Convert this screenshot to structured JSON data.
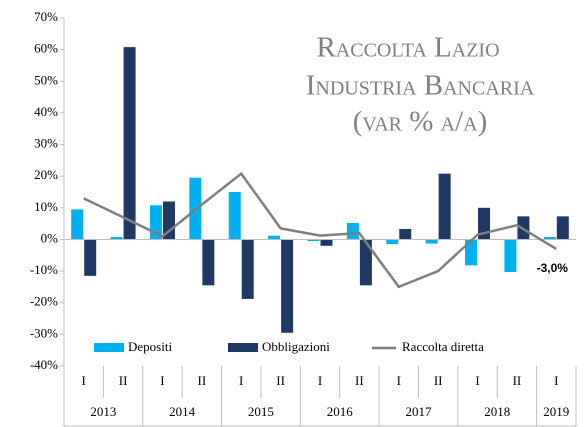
{
  "chart_data": {
    "type": "bar",
    "title": [
      "Raccolta Lazio",
      "Industria Bancaria",
      "(var % a/a)"
    ],
    "categories": [
      "I",
      "II",
      "I",
      "II",
      "I",
      "II",
      "I",
      "II",
      "I",
      "II",
      "I",
      "II",
      "I"
    ],
    "years": [
      "2013",
      "2014",
      "2015",
      "2016",
      "2017",
      "2018",
      "2019"
    ],
    "series": [
      {
        "name": "Depositi",
        "color": "#00b0f0",
        "values": [
          9.5,
          0.8,
          10.8,
          19.5,
          15,
          1.2,
          -0.5,
          5.2,
          -1.5,
          -1.3,
          -8.2,
          -10.3,
          0.8
        ]
      },
      {
        "name": "Obbligazioni",
        "color": "#1f3864",
        "values": [
          -11.5,
          60.8,
          12,
          -14.5,
          -18.8,
          -29.5,
          -2,
          -14.5,
          3.3,
          20.8,
          10,
          7.3,
          7.3
        ]
      },
      {
        "name": "Raccolta diretta",
        "type": "line",
        "color": "#7f7f7f",
        "values": [
          13,
          7,
          1,
          11,
          20.8,
          3.5,
          1.2,
          2,
          -15,
          -10,
          1.5,
          4.5,
          -3
        ],
        "value_labels": [
          null,
          null,
          null,
          null,
          null,
          null,
          null,
          null,
          null,
          null,
          null,
          null,
          "-3,0%"
        ]
      }
    ],
    "ylim": [
      -40,
      70
    ],
    "yticks": [
      {
        "value": -40,
        "label": "-40%"
      },
      {
        "value": -30,
        "label": "-30%"
      },
      {
        "value": -20,
        "label": "-20%"
      },
      {
        "value": -10,
        "label": "-10%"
      },
      {
        "value": 0,
        "label": "0%"
      },
      {
        "value": 10,
        "label": "10%"
      },
      {
        "value": 20,
        "label": "20%"
      },
      {
        "value": 30,
        "label": "30%"
      },
      {
        "value": 40,
        "label": "40%"
      },
      {
        "value": 50,
        "label": "50%"
      },
      {
        "value": 60,
        "label": "60%"
      },
      {
        "value": 70,
        "label": "70%"
      }
    ],
    "grid": false,
    "legend": "bottom"
  }
}
